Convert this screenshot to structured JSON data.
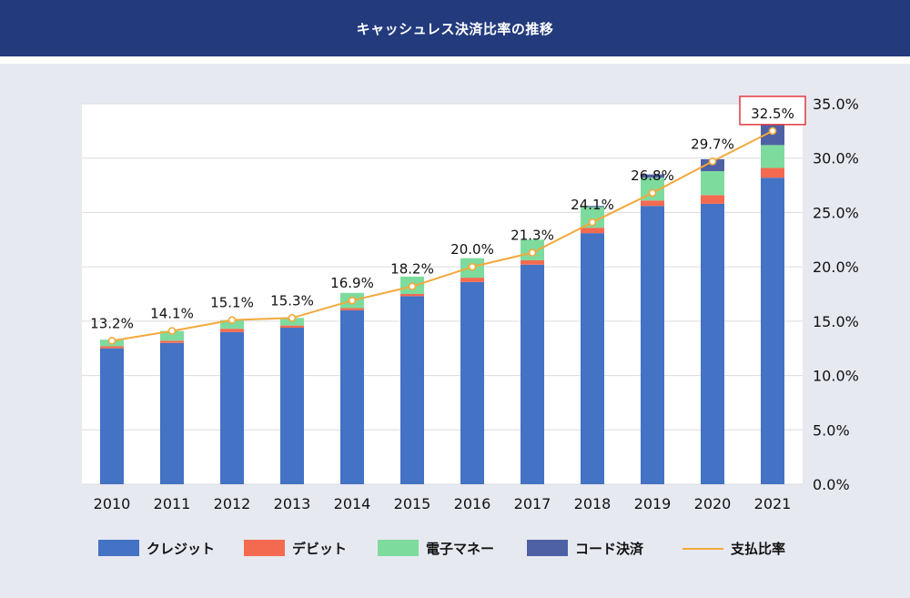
{
  "header": {
    "title": "キャッシュレス決済比率の推移"
  },
  "colors": {
    "credit": "#4472c4",
    "debit": "#f46a50",
    "emoney": "#7edb9e",
    "code": "#4e61a5",
    "line": "#f2a93b",
    "highlight_box": "#e0393e",
    "header_bg": "#233a7d",
    "panel_bg": "#e7e9f1"
  },
  "chart_data": {
    "type": "bar",
    "stacked": true,
    "title": "キャッシュレス決済比率の推移",
    "categories": [
      "2010",
      "2011",
      "2012",
      "2013",
      "2014",
      "2015",
      "2016",
      "2017",
      "2018",
      "2019",
      "2020",
      "2021"
    ],
    "series": [
      {
        "name": "クレジット",
        "color": "#4472c4",
        "values": [
          12.5,
          13.0,
          14.0,
          14.4,
          16.0,
          17.3,
          18.6,
          20.2,
          23.1,
          25.6,
          25.8,
          28.2
        ]
      },
      {
        "name": "デビット",
        "color": "#f46a50",
        "values": [
          0.2,
          0.2,
          0.3,
          0.2,
          0.2,
          0.2,
          0.4,
          0.4,
          0.5,
          0.5,
          0.8,
          0.9
        ]
      },
      {
        "name": "電子マネー",
        "color": "#7edb9e",
        "values": [
          0.6,
          0.9,
          0.8,
          0.7,
          1.4,
          1.6,
          1.8,
          1.9,
          1.9,
          2.1,
          2.2,
          2.1
        ]
      },
      {
        "name": "コード決済",
        "color": "#4e61a5",
        "values": [
          0,
          0,
          0,
          0,
          0,
          0,
          0,
          0,
          0.1,
          0.3,
          1.1,
          2.1
        ]
      }
    ],
    "line_series": {
      "name": "支払比率",
      "color": "#f2a93b",
      "values": [
        13.2,
        14.1,
        15.1,
        15.3,
        16.9,
        18.2,
        20.0,
        21.3,
        24.1,
        26.8,
        29.7,
        32.5
      ],
      "labels": [
        "13.2%",
        "14.1%",
        "15.1%",
        "15.3%",
        "16.9%",
        "18.2%",
        "20.0%",
        "21.3%",
        "24.1%",
        "26.8%",
        "29.7%",
        "32.5%"
      ],
      "highlight_index": 11
    },
    "y_axis": {
      "position": "right",
      "ylim": [
        0,
        35
      ],
      "ticks": [
        0,
        5,
        10,
        15,
        20,
        25,
        30,
        35
      ],
      "tick_labels": [
        "0.0%",
        "5.0%",
        "10.0%",
        "15.0%",
        "20.0%",
        "25.0%",
        "30.0%",
        "35.0%"
      ]
    },
    "grid": true,
    "legend": {
      "placement": "bottom",
      "items": [
        "クレジット",
        "デビット",
        "電子マネー",
        "コード決済",
        "支払比率"
      ]
    }
  }
}
